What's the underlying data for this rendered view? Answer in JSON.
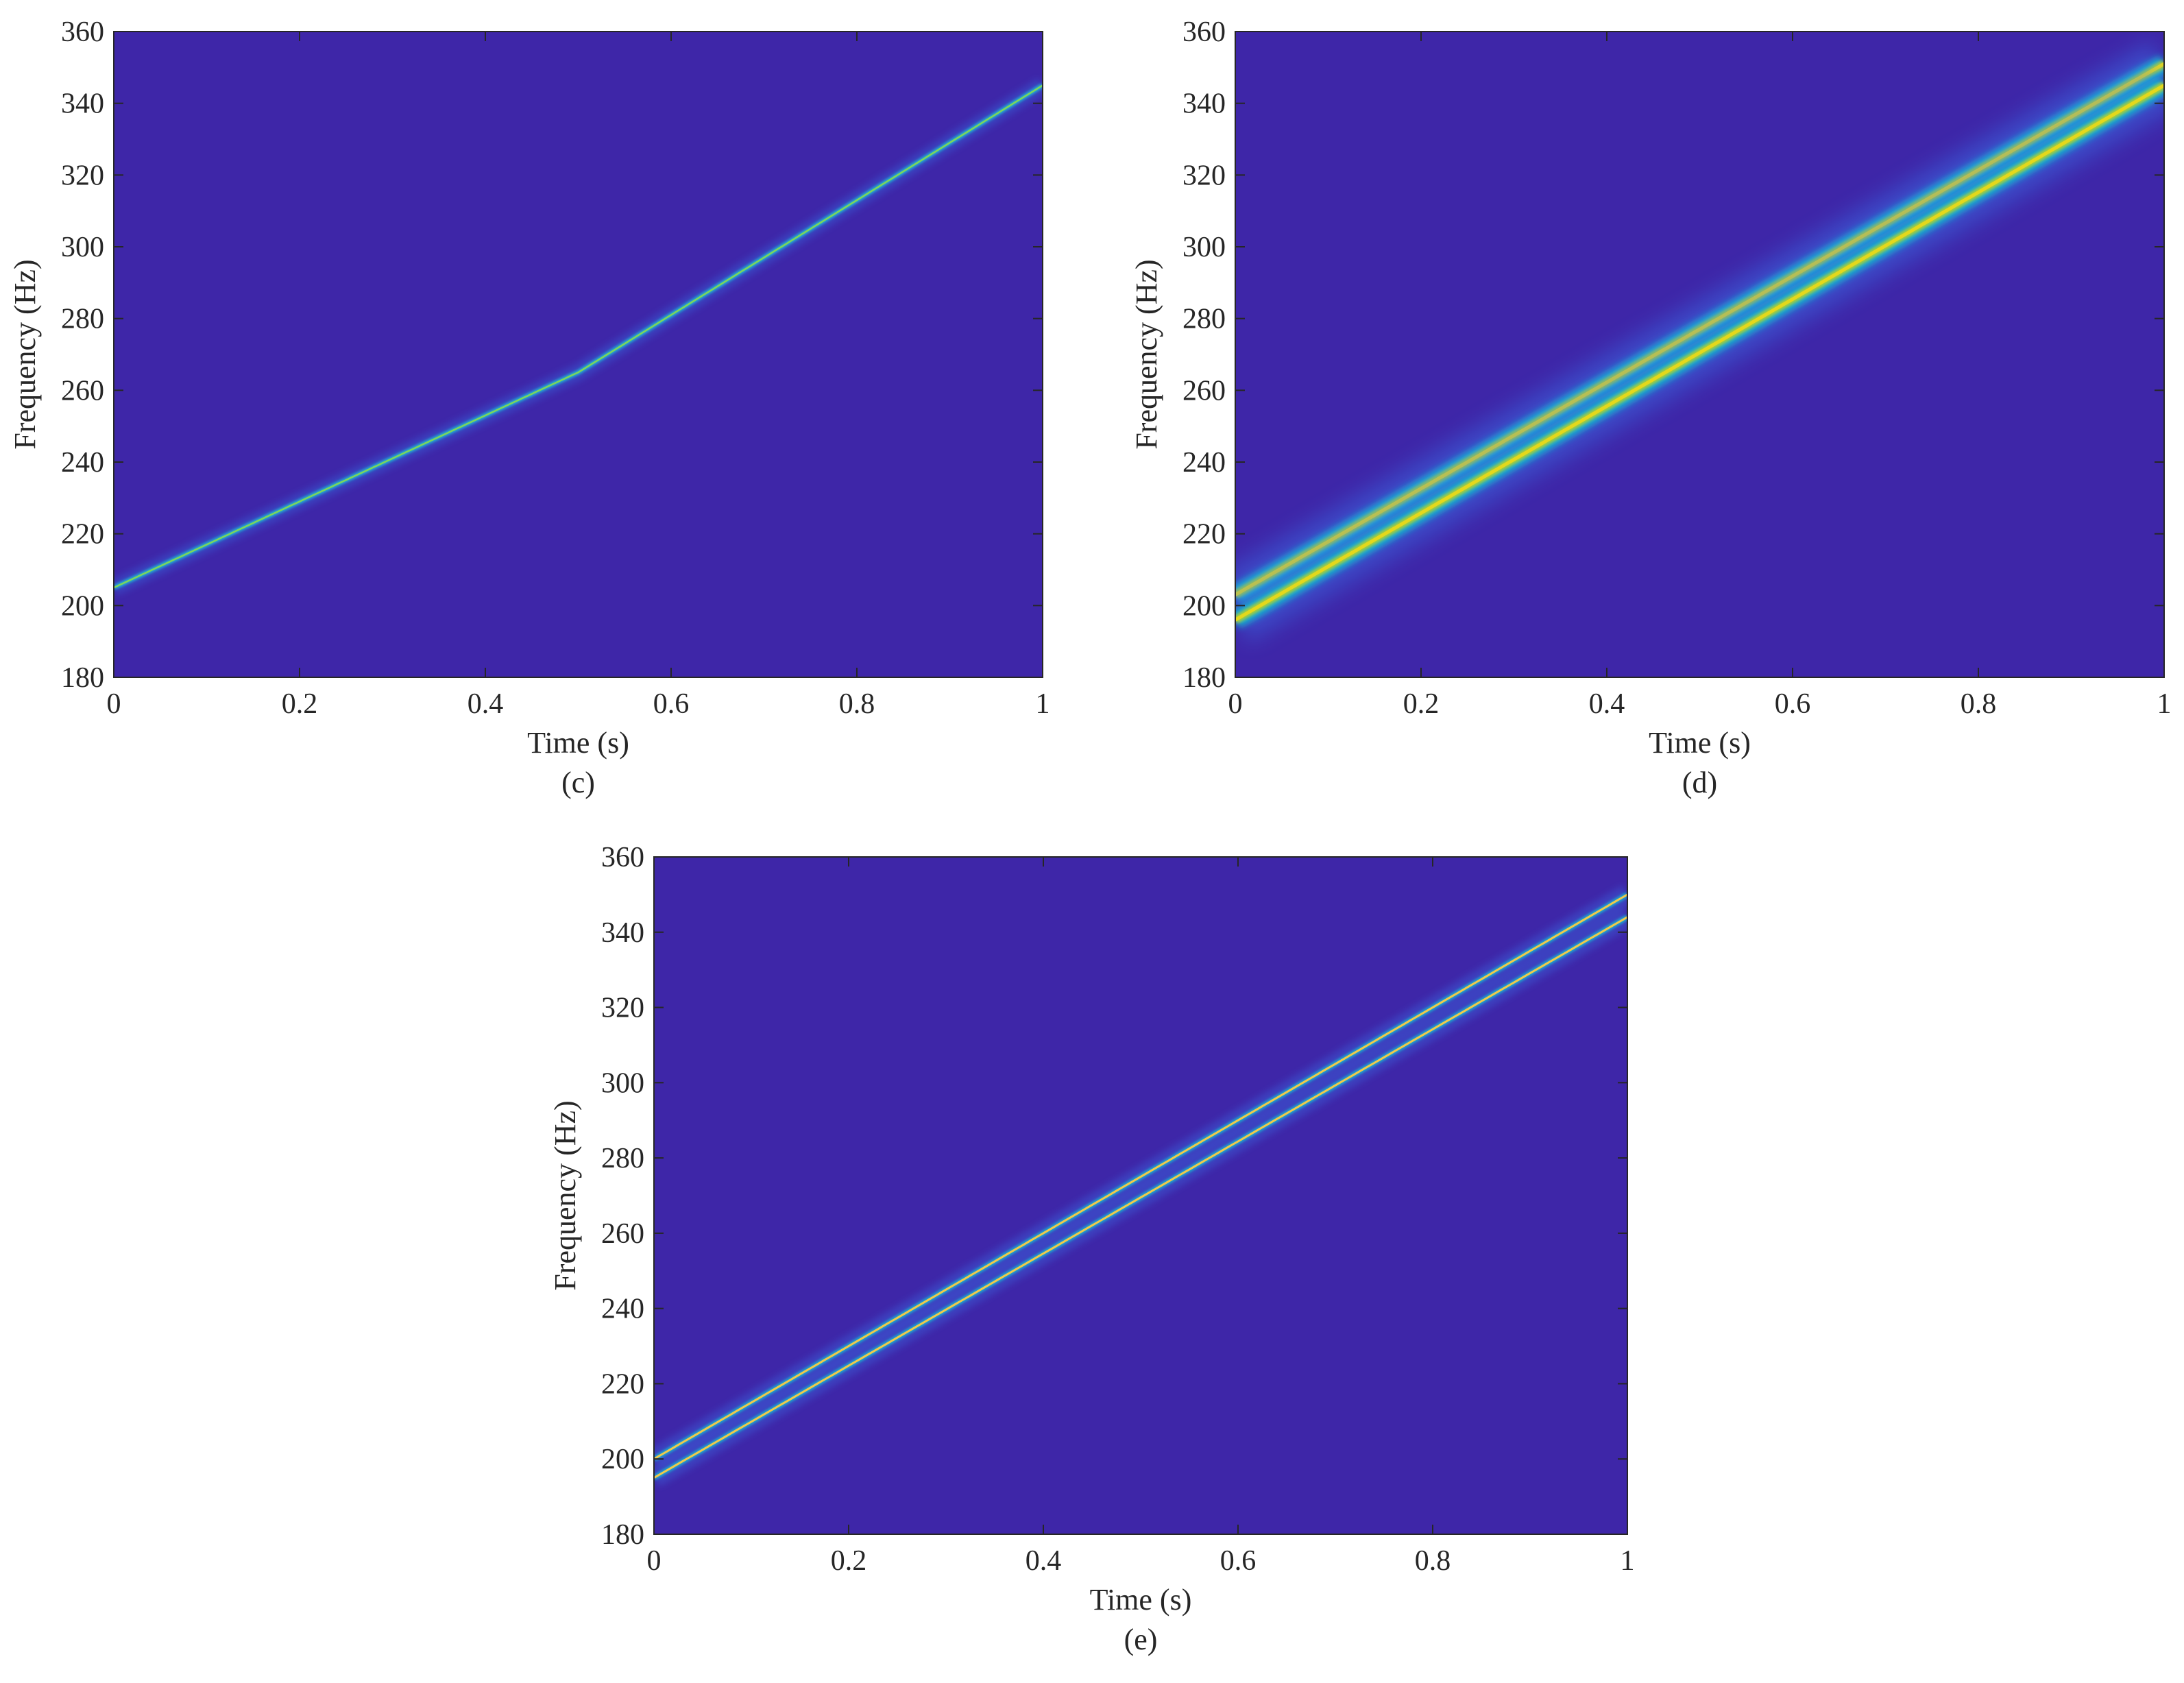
{
  "chart_data": [
    {
      "type": "heatmap",
      "caption": "(c)",
      "xlabel": "Time (s)",
      "ylabel": "Frequency (Hz)",
      "xlim": [
        0,
        1
      ],
      "ylim": [
        180,
        360
      ],
      "xticks": [
        "0",
        "0.2",
        "0.4",
        "0.6",
        "0.8",
        "1"
      ],
      "yticks": [
        "180",
        "200",
        "220",
        "240",
        "260",
        "280",
        "300",
        "320",
        "340",
        "360"
      ],
      "background_color": "#3e26a8",
      "ridge_style": "segmented",
      "ridges": [
        {
          "t": [
            0,
            0.5,
            1
          ],
          "f": [
            205,
            265,
            345
          ]
        }
      ]
    },
    {
      "type": "heatmap",
      "caption": "(d)",
      "xlabel": "Time (s)",
      "ylabel": "Frequency (Hz)",
      "xlim": [
        0,
        1
      ],
      "ylim": [
        180,
        360
      ],
      "xticks": [
        "0",
        "0.2",
        "0.4",
        "0.6",
        "0.8",
        "1"
      ],
      "yticks": [
        "180",
        "200",
        "220",
        "240",
        "260",
        "280",
        "300",
        "320",
        "340",
        "360"
      ],
      "background_color": "#3e26a8",
      "ridge_style": "broad",
      "ridges": [
        {
          "t": [
            0,
            1
          ],
          "f": [
            203,
            351
          ]
        },
        {
          "t": [
            0,
            1
          ],
          "f": [
            196,
            345
          ]
        }
      ]
    },
    {
      "type": "heatmap",
      "caption": "(e)",
      "xlabel": "Time (s)",
      "ylabel": "Frequency (Hz)",
      "xlim": [
        0,
        1
      ],
      "ylim": [
        180,
        360
      ],
      "xticks": [
        "0",
        "0.2",
        "0.4",
        "0.6",
        "0.8",
        "1"
      ],
      "yticks": [
        "180",
        "200",
        "220",
        "240",
        "260",
        "280",
        "300",
        "320",
        "340",
        "360"
      ],
      "background_color": "#3e26a8",
      "ridge_style": "sharp",
      "ridges": [
        {
          "t": [
            0,
            1
          ],
          "f": [
            200,
            350
          ]
        },
        {
          "t": [
            0,
            1
          ],
          "f": [
            195,
            344
          ]
        }
      ]
    }
  ]
}
